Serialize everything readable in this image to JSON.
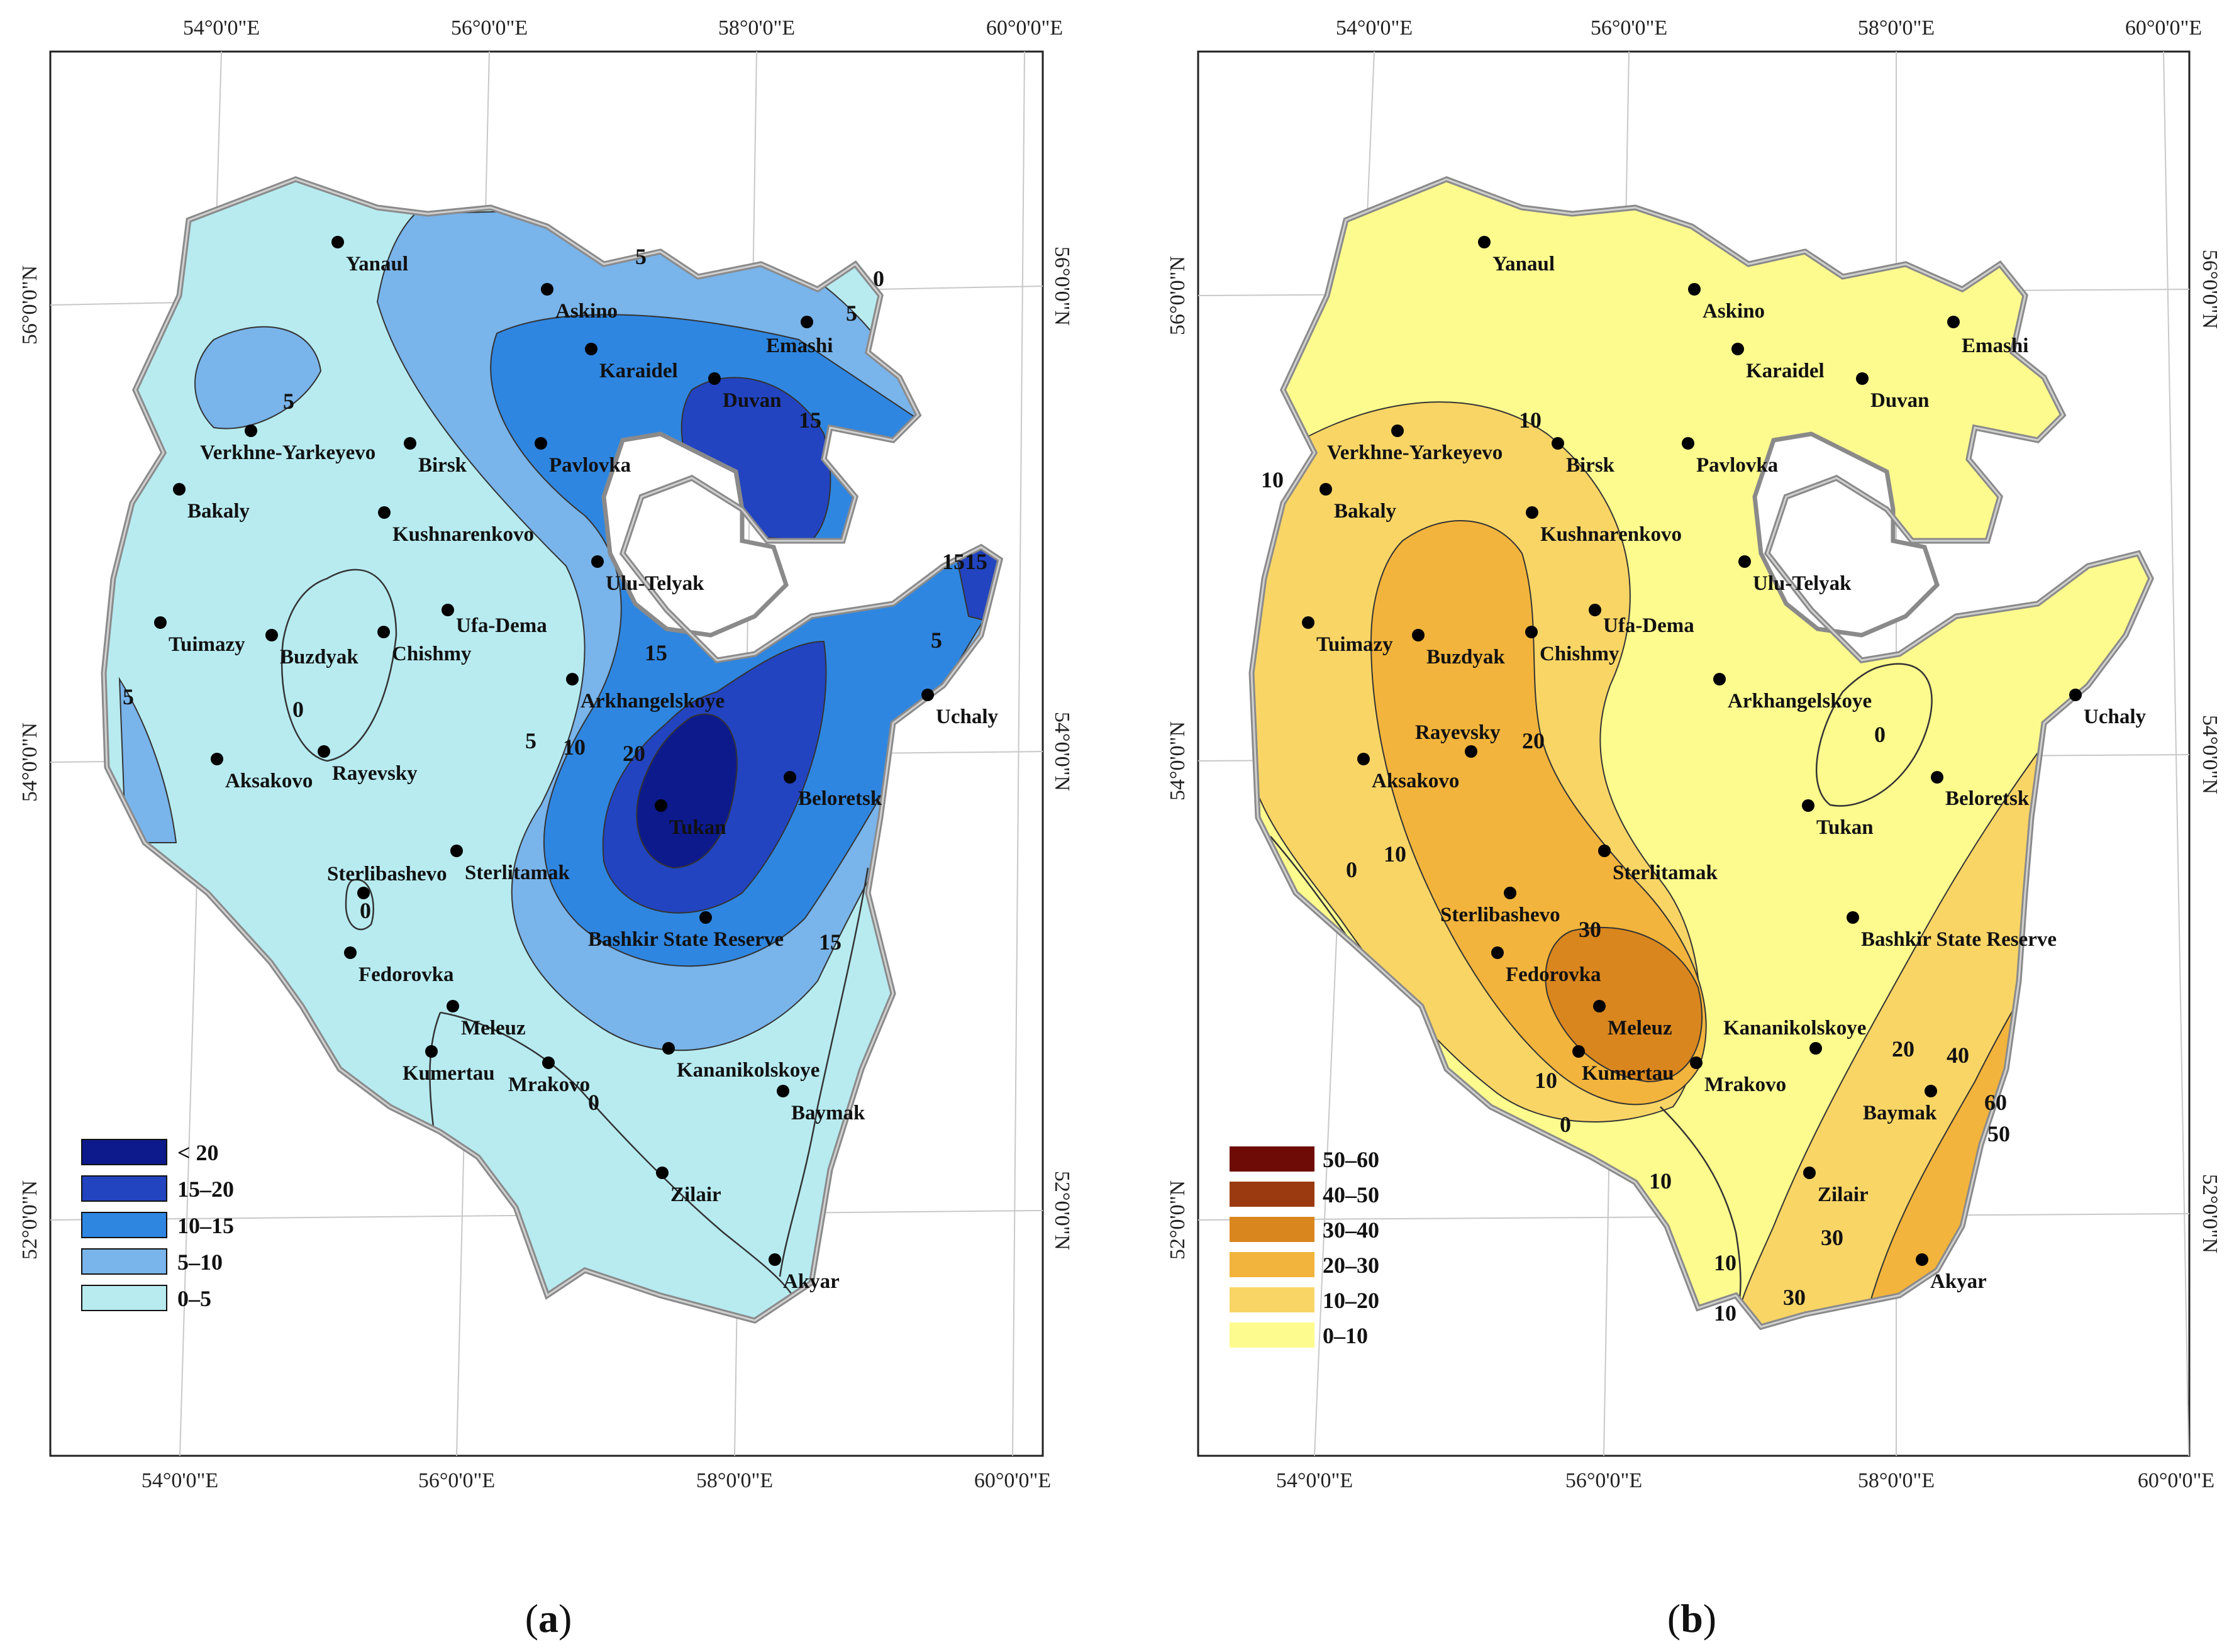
{
  "figure": {
    "panel_a": {
      "caption_open": "(",
      "caption_letter": "a",
      "caption_close": ")",
      "legend": [
        {
          "label": "< 20",
          "color": "#0d1a8c"
        },
        {
          "label": "15–20",
          "color": "#2244c0"
        },
        {
          "label": "10–15",
          "color": "#2f86e0"
        },
        {
          "label": "5–10",
          "color": "#79b4ea"
        },
        {
          "label": "0–5",
          "color": "#b7ebf0"
        }
      ],
      "isolines": [
        "5",
        "0",
        "5",
        "5",
        "15",
        "5",
        "5",
        "15",
        "10",
        "5",
        "20",
        "0",
        "0",
        "0",
        "1515",
        "15"
      ]
    },
    "panel_b": {
      "caption_open": "(",
      "caption_letter": "b",
      "caption_close": ")",
      "legend": [
        {
          "label": "50–60",
          "color": "#6e0b07"
        },
        {
          "label": "40–50",
          "color": "#9b3a10"
        },
        {
          "label": "30–40",
          "color": "#d9861e"
        },
        {
          "label": "20–30",
          "color": "#f2b43c"
        },
        {
          "label": "10–20",
          "color": "#f9d566"
        },
        {
          "label": "0–10",
          "color": "#fdfb8e"
        }
      ],
      "isolines": [
        "10",
        "10",
        "20",
        "30",
        "10",
        "10",
        "0",
        "0",
        "10",
        "0",
        "20",
        "40",
        "50",
        "60",
        "30",
        "10",
        "10",
        "30"
      ]
    },
    "top_axis": [
      "54°0'0\"E",
      "56°0'0\"E",
      "58°0'0\"E",
      "60°0'0\"E"
    ],
    "bottom_axis": [
      "54°0'0\"E",
      "56°0'0\"E",
      "58°0'0\"E",
      "60°0'0\"E"
    ],
    "lat_labels": [
      "56°0'0\"N",
      "54°0'0\"N",
      "52°0'0\"N"
    ],
    "cities": [
      "Yanaul",
      "Askino",
      "Emashi",
      "Karaidel",
      "Duvan",
      "Verkhne-Yarkeyevo",
      "Birsk",
      "Pavlovka",
      "Bakaly",
      "Kushnarenkovo",
      "Ulu-Telyak",
      "Tuimazy",
      "Buzdyak",
      "Chishmy",
      "Ufa-Dema",
      "Arkhangelskoye",
      "Uchaly",
      "Aksakovo",
      "Rayevsky",
      "Beloretsk",
      "Tukan",
      "Sterlibashevo",
      "Sterlitamak",
      "Bashkir State Reserve",
      "Fedorovka",
      "Meleuz",
      "Kananikolskoye",
      "Kumertau",
      "Mrakovo",
      "Baymak",
      "Zilair",
      "Akyar"
    ]
  }
}
